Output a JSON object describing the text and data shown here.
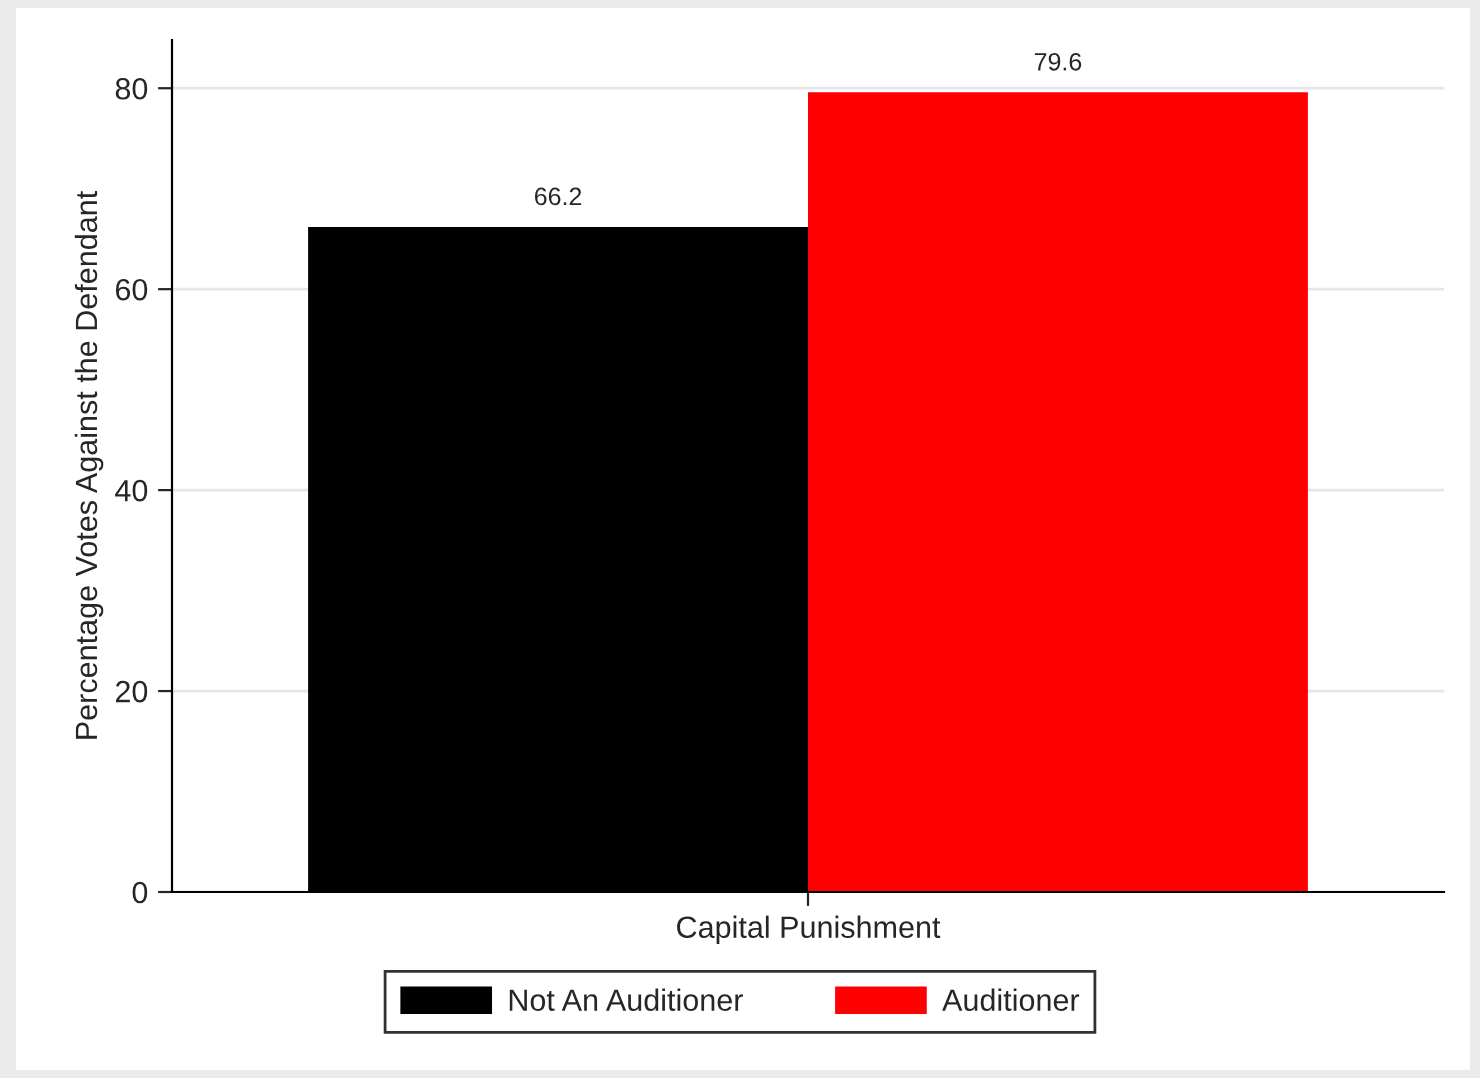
{
  "chart_data": {
    "type": "bar",
    "ylabel": "Percentage Votes Against the Defendant",
    "categories": [
      "Capital Punishment"
    ],
    "series": [
      {
        "name": "Not An Auditioner",
        "color": "#000000",
        "values": [
          66.2
        ]
      },
      {
        "name": "Auditioner",
        "color": "#ff0000",
        "values": [
          79.6
        ]
      }
    ],
    "ylim": [
      0,
      84.8
    ],
    "yticks": [
      0,
      20,
      40,
      60,
      80
    ],
    "grid": "y",
    "legend": "bottom",
    "data_labels": true
  }
}
